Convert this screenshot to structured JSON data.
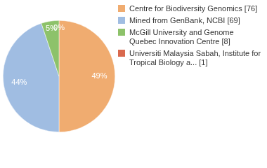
{
  "chart_data": {
    "type": "pie",
    "categories": [
      "Centre for Biodiversity Genomics [76]",
      "Mined from GenBank, NCBI [69]",
      "McGill University and Genome Quebec Innovation Centre [8]",
      "Universiti Malaysia Sabah, Institute for Tropical Biology a... [1]"
    ],
    "values": [
      49,
      44,
      5,
      0
    ],
    "value_labels": [
      "49%",
      "44%",
      "5%",
      "0%"
    ],
    "colors": [
      "#f0ac70",
      "#a0bde2",
      "#8dc26a",
      "#d9694e"
    ],
    "data_labels": true,
    "legend": "right"
  }
}
